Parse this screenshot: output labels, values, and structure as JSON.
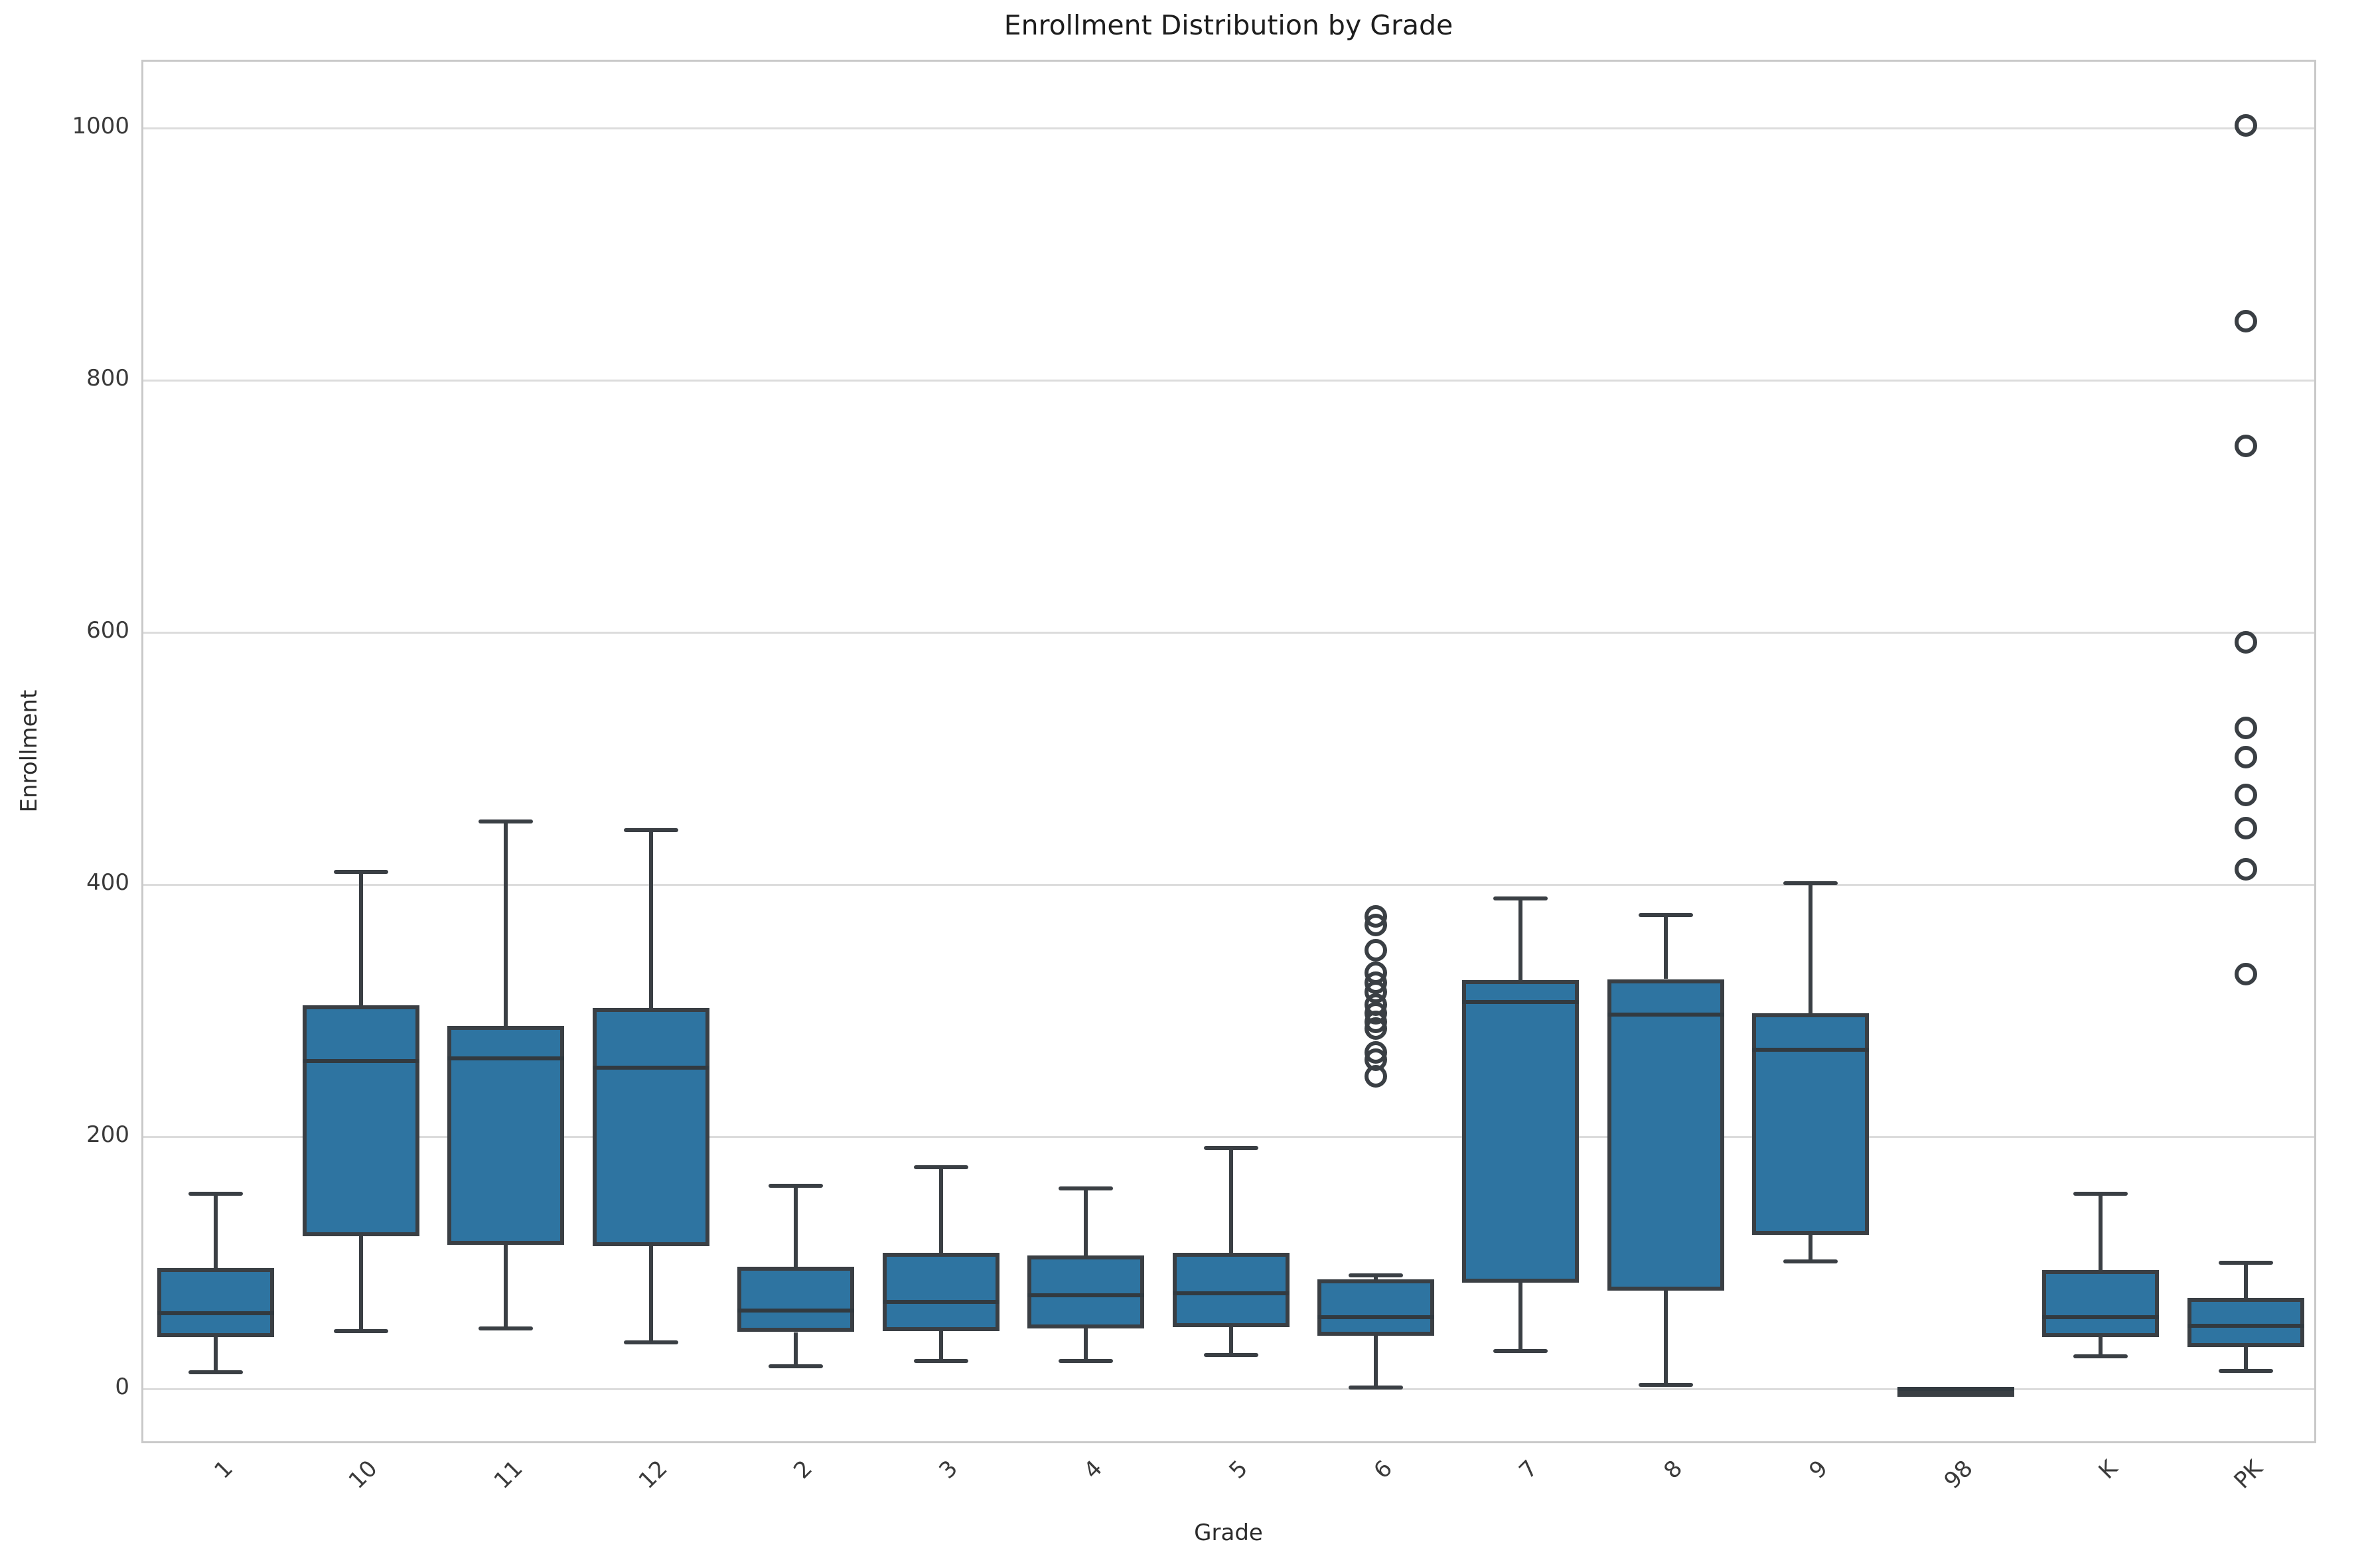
{
  "page": {
    "title": "Enrollment Distribution by Grade"
  },
  "chart_data": {
    "type": "box",
    "title": "Enrollment Distribution by Grade",
    "xlabel": "Grade",
    "ylabel": "Enrollment",
    "ylim": [
      -45,
      1053
    ],
    "yticks": [
      0,
      200,
      400,
      600,
      800,
      1000
    ],
    "grid": "horizontal-only",
    "legend": "none",
    "box_fill_color": "#2e74a1",
    "box_edge_color": "#3a3f44",
    "categories": [
      "1",
      "10",
      "11",
      "12",
      "2",
      "3",
      "4",
      "5",
      "6",
      "7",
      "8",
      "9",
      "98",
      "K",
      "PK"
    ],
    "boxes": [
      {
        "label": "1",
        "whislo": 13,
        "q1": 41,
        "med": 60,
        "q3": 96,
        "whishi": 155,
        "outliers": []
      },
      {
        "label": "10",
        "whislo": 46,
        "q1": 121,
        "med": 260,
        "q3": 304,
        "whishi": 410,
        "outliers": []
      },
      {
        "label": "11",
        "whislo": 48,
        "q1": 114,
        "med": 262,
        "q3": 288,
        "whishi": 450,
        "outliers": []
      },
      {
        "label": "12",
        "whislo": 37,
        "q1": 113,
        "med": 255,
        "q3": 302,
        "whishi": 443,
        "outliers": []
      },
      {
        "label": "2",
        "whislo": 18,
        "q1": 45,
        "med": 62,
        "q3": 97,
        "whishi": 161,
        "outliers": []
      },
      {
        "label": "3",
        "whislo": 22,
        "q1": 46,
        "med": 69,
        "q3": 108,
        "whishi": 176,
        "outliers": []
      },
      {
        "label": "4",
        "whislo": 22,
        "q1": 48,
        "med": 74,
        "q3": 106,
        "whishi": 159,
        "outliers": []
      },
      {
        "label": "5",
        "whislo": 27,
        "q1": 49,
        "med": 76,
        "q3": 108,
        "whishi": 191,
        "outliers": []
      },
      {
        "label": "6",
        "whislo": 1,
        "q1": 42,
        "med": 57,
        "q3": 87,
        "whishi": 90,
        "outliers": [
          248,
          261,
          267,
          286,
          291,
          298,
          305,
          315,
          322,
          330,
          348,
          368,
          375
        ]
      },
      {
        "label": "7",
        "whislo": 30,
        "q1": 84,
        "med": 307,
        "q3": 324,
        "whishi": 389,
        "outliers": []
      },
      {
        "label": "8",
        "whislo": 3,
        "q1": 78,
        "med": 297,
        "q3": 325,
        "whishi": 376,
        "outliers": []
      },
      {
        "label": "9",
        "whislo": 101,
        "q1": 122,
        "med": 269,
        "q3": 298,
        "whishi": 401,
        "outliers": []
      },
      {
        "label": "98",
        "whislo": 0,
        "q1": 0,
        "med": 0,
        "q3": 0,
        "whishi": 0,
        "outliers": []
      },
      {
        "label": "K",
        "whislo": 26,
        "q1": 41,
        "med": 57,
        "q3": 94,
        "whishi": 155,
        "outliers": []
      },
      {
        "label": "PK",
        "whislo": 14,
        "q1": 33,
        "med": 50,
        "q3": 72,
        "whishi": 100,
        "outliers": [
          329,
          412,
          445,
          471,
          501,
          524,
          592,
          748,
          847,
          1002
        ]
      }
    ]
  }
}
